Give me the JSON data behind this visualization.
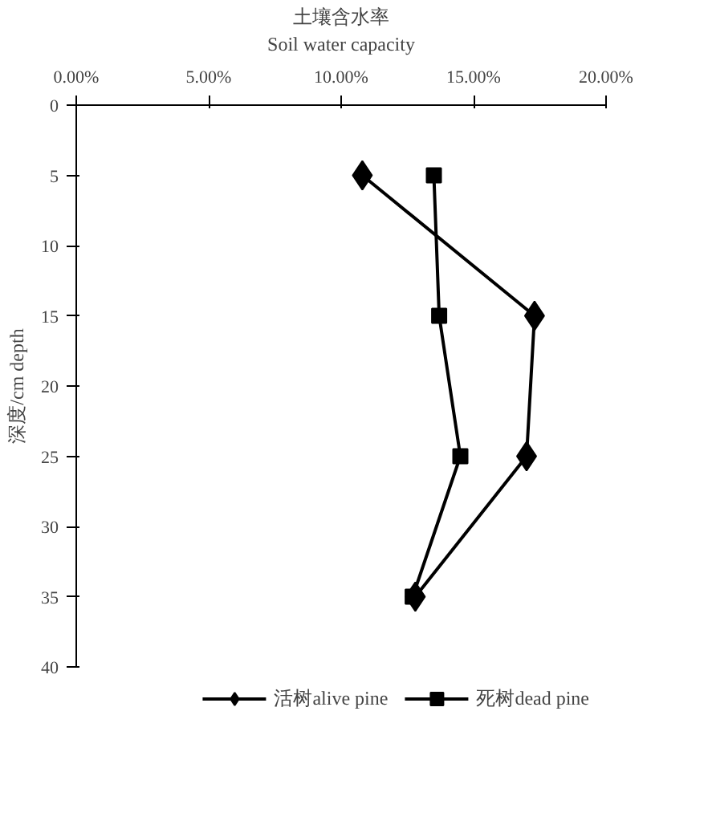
{
  "chart_data": {
    "type": "line",
    "xlabel": "土壤含水率\nSoil water capacity",
    "ylabel": "深度/cm depth",
    "xlim": [
      0,
      20
    ],
    "xticks": [
      {
        "value": 0,
        "label": "0.00%"
      },
      {
        "value": 5,
        "label": "5.00%"
      },
      {
        "value": 10,
        "label": "10.00%"
      },
      {
        "value": 15,
        "label": "15.00%"
      },
      {
        "value": 20,
        "label": "20.00%"
      }
    ],
    "ylim": [
      40,
      0
    ],
    "yticks": [
      0,
      5,
      10,
      15,
      20,
      25,
      30,
      35,
      40
    ],
    "series": [
      {
        "name": "活树alive pine",
        "color": "#000000",
        "marker": "diamond",
        "x": [
          10.8,
          17.3,
          17.0,
          12.8
        ],
        "values": [
          5,
          15,
          25,
          35
        ]
      },
      {
        "name": "死树dead pine",
        "color": "#000000",
        "marker": "square",
        "x": [
          13.5,
          13.7,
          14.5,
          12.7
        ],
        "values": [
          5,
          15,
          25,
          35
        ]
      }
    ],
    "grid": false,
    "legend": "bottom",
    "line_style": "solid"
  }
}
